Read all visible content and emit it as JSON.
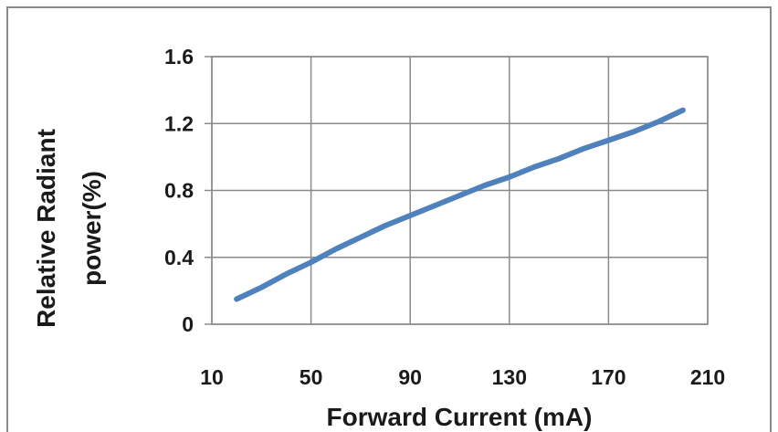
{
  "chart_data": {
    "type": "line",
    "title": "",
    "xlabel": "Forward Current (mA)",
    "ylabel_lines": [
      "Relative Radiant",
      "power(%)"
    ],
    "xlim": [
      10,
      210
    ],
    "ylim": [
      0,
      1.6
    ],
    "x_ticks": [
      10,
      50,
      90,
      130,
      170,
      210
    ],
    "x_tick_labels": [
      "10",
      "50",
      "90",
      "130",
      "170",
      "210"
    ],
    "y_ticks": [
      0,
      0.4,
      0.8,
      1.2,
      1.6
    ],
    "y_tick_labels": [
      "0",
      "0.4",
      "0.8",
      "1.2",
      "1.6"
    ],
    "grid": true,
    "legend": "none",
    "series": [
      {
        "color": "#4f81bd",
        "x": [
          20,
          30,
          40,
          50,
          60,
          70,
          80,
          90,
          100,
          110,
          120,
          130,
          140,
          150,
          160,
          170,
          180,
          190,
          200
        ],
        "y": [
          0.15,
          0.22,
          0.3,
          0.37,
          0.45,
          0.52,
          0.59,
          0.65,
          0.71,
          0.77,
          0.83,
          0.88,
          0.94,
          0.99,
          1.05,
          1.1,
          1.15,
          1.21,
          1.28
        ]
      }
    ]
  }
}
